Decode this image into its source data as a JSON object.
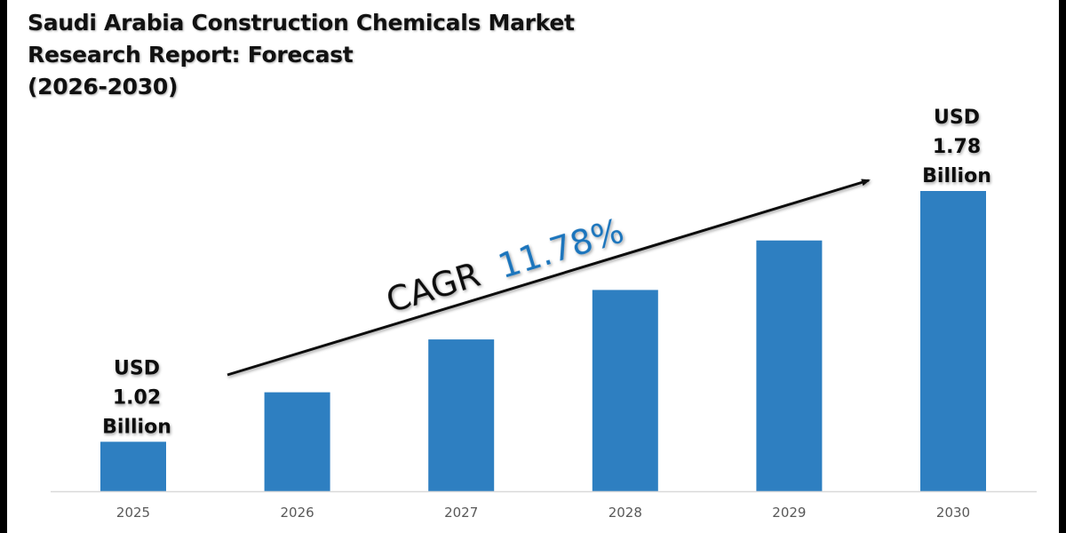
{
  "title_lines": [
    "Saudi Arabia Construction Chemicals Market",
    "Research Report: Forecast",
    "(2026-2030)"
  ],
  "colors": {
    "bar": "#2E7FC1",
    "cagr_value": "#1B75BC",
    "text": "#111111",
    "axis": "#D9D9D9",
    "tick_text": "#595959"
  },
  "chart_data": {
    "type": "bar",
    "title": "Saudi Arabia Construction Chemicals Market Research Report: Forecast (2026-2030)",
    "xlabel": "",
    "ylabel": "",
    "categories": [
      "2025",
      "2026",
      "2027",
      "2028",
      "2029",
      "2030"
    ],
    "values": [
      1.02,
      1.17,
      1.33,
      1.48,
      1.63,
      1.78
    ],
    "units": "USD Billion",
    "ylim": [
      0.87,
      1.78
    ],
    "grid": false,
    "legend": "none",
    "annotations": [
      {
        "category": "2025",
        "lines": [
          "USD",
          "1.02",
          "Billion"
        ]
      },
      {
        "category": "2030",
        "lines": [
          "USD",
          "1.78",
          "Billion"
        ]
      }
    ],
    "trend_arrow": {
      "from_category": "2025",
      "to_category": "2030",
      "label_prefix": "CAGR",
      "label_value": "11.78%"
    }
  }
}
